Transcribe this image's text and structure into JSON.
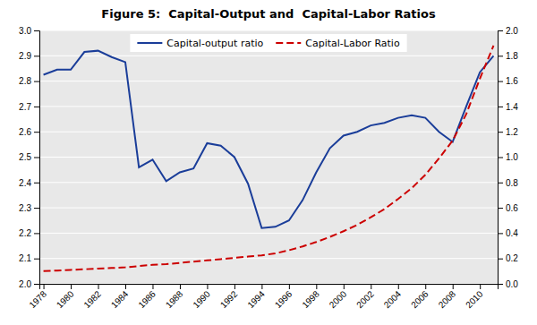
{
  "chart_data": {
    "type": "line",
    "title": "Figure 5:  Capital-Output and  Capital-Labor Ratios",
    "x": [
      1978,
      1979,
      1980,
      1981,
      1982,
      1983,
      1984,
      1985,
      1986,
      1987,
      1988,
      1989,
      1990,
      1991,
      1992,
      1993,
      1994,
      1995,
      1996,
      1997,
      1998,
      1999,
      2000,
      2001,
      2002,
      2003,
      2004,
      2005,
      2006,
      2007,
      2008,
      2009,
      2010,
      2011
    ],
    "xlim": [
      1977.7,
      2011.3
    ],
    "xticks": [
      1978,
      1980,
      1982,
      1984,
      1986,
      1988,
      1990,
      1992,
      1994,
      1996,
      1998,
      2000,
      2002,
      2004,
      2006,
      2008,
      2010
    ],
    "ylim": [
      2.0,
      3.0
    ],
    "yticks": [
      {
        "value": 2.0,
        "label": "2.0"
      },
      2.1,
      2.2,
      2.3,
      2.4,
      2.5,
      2.6,
      2.7,
      2.8,
      2.9,
      {
        "value": 3.0,
        "label": "3.0"
      }
    ],
    "y2lim": [
      0,
      2.0
    ],
    "y2ticks": [
      {
        "value": 0,
        "label": "0.0"
      },
      0.2,
      0.4,
      0.6,
      0.8,
      {
        "value": 1.0,
        "label": "1.0"
      },
      1.2,
      1.4,
      1.6,
      1.8,
      {
        "value": 2.0,
        "label": "2.0"
      }
    ],
    "grid": true,
    "legend": "top",
    "series": [
      {
        "name": "Capital-output ratio",
        "color": "#1a3d99",
        "line_style": "solid",
        "values": [
          2.825,
          2.845,
          2.845,
          2.915,
          2.92,
          2.895,
          2.875,
          2.46,
          2.49,
          2.405,
          2.44,
          2.455,
          2.555,
          2.545,
          2.5,
          2.395,
          2.22,
          2.225,
          2.25,
          2.33,
          2.44,
          2.535,
          2.585,
          2.6,
          2.625,
          2.635,
          2.655,
          2.665,
          2.655,
          2.6,
          2.56,
          2.7,
          2.835,
          2.9
        ]
      },
      {
        "name": "Capital-Labor Ratio",
        "color": "#cc0000",
        "line_style": "dashed",
        "axis": "y2",
        "values": [
          0.1,
          0.105,
          0.11,
          0.115,
          0.12,
          0.125,
          0.13,
          0.14,
          0.15,
          0.155,
          0.165,
          0.175,
          0.185,
          0.195,
          0.205,
          0.215,
          0.225,
          0.24,
          0.265,
          0.295,
          0.33,
          0.37,
          0.415,
          0.465,
          0.525,
          0.59,
          0.67,
          0.755,
          0.86,
          0.99,
          1.13,
          1.34,
          1.62,
          1.88
        ]
      }
    ]
  }
}
